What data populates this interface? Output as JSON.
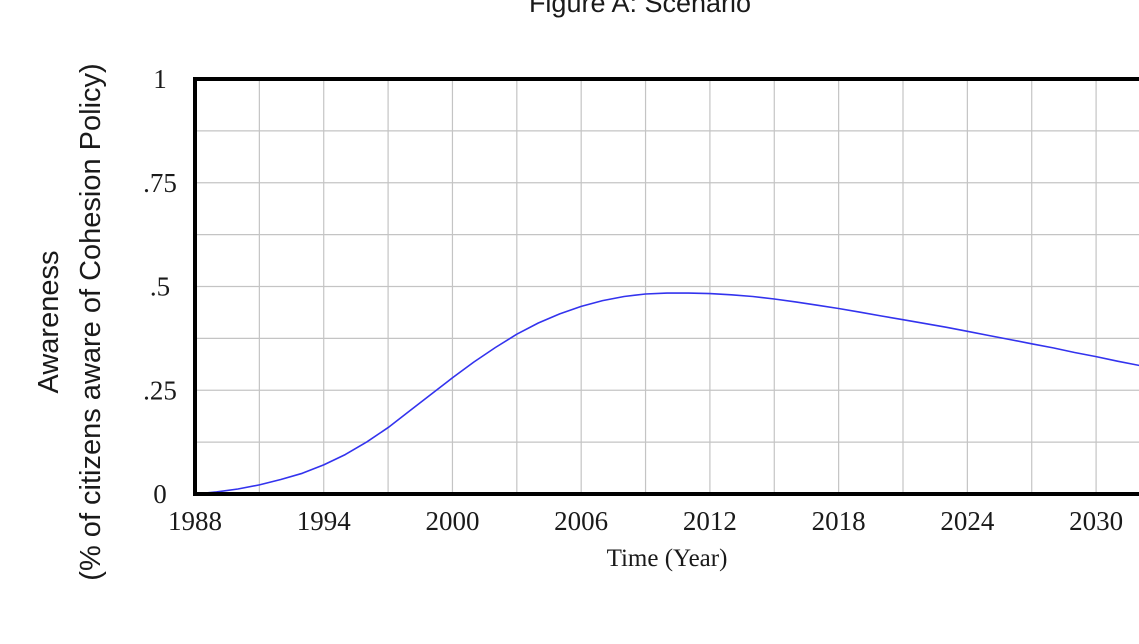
{
  "chart_data": {
    "type": "line",
    "title": "Figure A: Scenario",
    "xlabel": "Time (Year)",
    "ylabel_line1": "Awareness",
    "ylabel_line2": "(% of citizens aware of Cohesion Policy)",
    "xlim": [
      1988,
      2032
    ],
    "ylim": [
      0,
      1
    ],
    "x_ticks": [
      1988,
      1994,
      2000,
      2006,
      2012,
      2018,
      2024,
      2030
    ],
    "x_tick_labels": [
      "1988",
      "1994",
      "2000",
      "2006",
      "2012",
      "2018",
      "2024",
      "2030"
    ],
    "y_ticks": [
      0,
      0.25,
      0.5,
      0.75,
      1
    ],
    "y_tick_labels": [
      "0",
      ".25",
      ".5",
      ".75",
      "1"
    ],
    "grid": true,
    "series": [
      {
        "color": "#3333ee",
        "x": [
          1988,
          1989,
          1990,
          1991,
          1992,
          1993,
          1994,
          1995,
          1996,
          1997,
          1998,
          1999,
          2000,
          2001,
          2002,
          2003,
          2004,
          2005,
          2006,
          2007,
          2008,
          2009,
          2010,
          2011,
          2012,
          2013,
          2014,
          2015,
          2016,
          2017,
          2018,
          2019,
          2020,
          2021,
          2022,
          2023,
          2024,
          2025,
          2026,
          2027,
          2028,
          2029,
          2030,
          2031,
          2032
        ],
        "y": [
          0.0,
          0.005,
          0.012,
          0.022,
          0.035,
          0.05,
          0.07,
          0.095,
          0.125,
          0.16,
          0.2,
          0.24,
          0.28,
          0.318,
          0.353,
          0.385,
          0.412,
          0.434,
          0.452,
          0.466,
          0.476,
          0.482,
          0.484,
          0.484,
          0.483,
          0.48,
          0.476,
          0.47,
          0.463,
          0.455,
          0.447,
          0.438,
          0.429,
          0.42,
          0.411,
          0.402,
          0.392,
          0.382,
          0.372,
          0.362,
          0.352,
          0.341,
          0.331,
          0.32,
          0.31
        ]
      }
    ]
  }
}
